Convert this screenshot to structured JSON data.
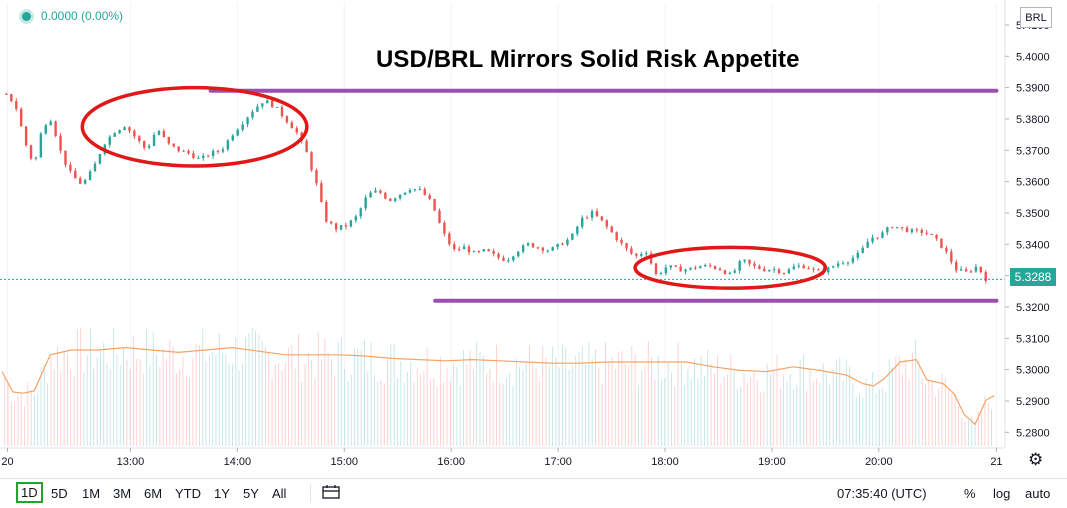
{
  "header": {
    "price_change": "0.0000 (0.00%)",
    "symbol": "BRL",
    "title": "USD/BRL Mirrors Solid Risk Appetite"
  },
  "colors": {
    "up": "#26a69a",
    "down": "#ef5350",
    "annotation_line": "#9c4fb0",
    "annotation_ellipse": "#e01818",
    "volume_ma": "#f5a365",
    "active_range": "#1fa52e"
  },
  "chart_data": {
    "type": "candlestick",
    "title": "USD/BRL Mirrors Solid Risk Appetite",
    "y_axis": {
      "ticks": [
        "5.4100",
        "5.4000",
        "5.3900",
        "5.3800",
        "5.3700",
        "5.3600",
        "5.3500",
        "5.3400",
        "5.3300",
        "5.3200",
        "5.3100",
        "5.3000",
        "5.2900",
        "5.2800"
      ],
      "range": [
        5.275,
        5.417
      ]
    },
    "x_axis": {
      "ticks": [
        {
          "label": "20",
          "hour": 11.85
        },
        {
          "label": "13:00",
          "hour": 13.0
        },
        {
          "label": "14:00",
          "hour": 14.0
        },
        {
          "label": "15:00",
          "hour": 15.0
        },
        {
          "label": "16:00",
          "hour": 16.0
        },
        {
          "label": "17:00",
          "hour": 17.0
        },
        {
          "label": "18:00",
          "hour": 18.0
        },
        {
          "label": "19:00",
          "hour": 19.0
        },
        {
          "label": "20:00",
          "hour": 20.0
        },
        {
          "label": "21",
          "hour": 21.1
        }
      ],
      "range": [
        11.78,
        21.18
      ]
    },
    "last_price": "5.3288",
    "last_price_value": 5.3288,
    "price_path": [
      [
        11.82,
        5.388
      ],
      [
        11.92,
        5.385
      ],
      [
        12.02,
        5.372
      ],
      [
        12.1,
        5.365
      ],
      [
        12.18,
        5.378
      ],
      [
        12.26,
        5.38
      ],
      [
        12.36,
        5.368
      ],
      [
        12.45,
        5.362
      ],
      [
        12.55,
        5.359
      ],
      [
        12.65,
        5.364
      ],
      [
        12.75,
        5.372
      ],
      [
        12.85,
        5.376
      ],
      [
        12.95,
        5.378
      ],
      [
        13.05,
        5.374
      ],
      [
        13.15,
        5.37
      ],
      [
        13.25,
        5.377
      ],
      [
        13.35,
        5.372
      ],
      [
        13.45,
        5.37
      ],
      [
        13.55,
        5.369
      ],
      [
        13.65,
        5.367
      ],
      [
        13.75,
        5.369
      ],
      [
        13.85,
        5.37
      ],
      [
        13.95,
        5.375
      ],
      [
        14.05,
        5.379
      ],
      [
        14.15,
        5.383
      ],
      [
        14.25,
        5.386
      ],
      [
        14.35,
        5.384
      ],
      [
        14.45,
        5.38
      ],
      [
        14.55,
        5.376
      ],
      [
        14.65,
        5.369
      ],
      [
        14.75,
        5.358
      ],
      [
        14.82,
        5.348
      ],
      [
        14.92,
        5.345
      ],
      [
        15.02,
        5.346
      ],
      [
        15.12,
        5.349
      ],
      [
        15.22,
        5.356
      ],
      [
        15.32,
        5.357
      ],
      [
        15.42,
        5.354
      ],
      [
        15.52,
        5.356
      ],
      [
        15.62,
        5.358
      ],
      [
        15.72,
        5.357
      ],
      [
        15.82,
        5.353
      ],
      [
        15.92,
        5.344
      ],
      [
        16.02,
        5.338
      ],
      [
        16.12,
        5.339
      ],
      [
        16.22,
        5.337
      ],
      [
        16.32,
        5.338
      ],
      [
        16.42,
        5.336
      ],
      [
        16.52,
        5.335
      ],
      [
        16.62,
        5.338
      ],
      [
        16.72,
        5.34
      ],
      [
        16.82,
        5.339
      ],
      [
        16.92,
        5.338
      ],
      [
        17.02,
        5.34
      ],
      [
        17.12,
        5.342
      ],
      [
        17.22,
        5.348
      ],
      [
        17.32,
        5.35
      ],
      [
        17.42,
        5.347
      ],
      [
        17.52,
        5.343
      ],
      [
        17.62,
        5.339
      ],
      [
        17.72,
        5.336
      ],
      [
        17.82,
        5.338
      ],
      [
        17.92,
        5.33
      ],
      [
        18.02,
        5.333
      ],
      [
        18.12,
        5.332
      ],
      [
        18.22,
        5.332
      ],
      [
        18.32,
        5.333
      ],
      [
        18.42,
        5.333
      ],
      [
        18.52,
        5.332
      ],
      [
        18.62,
        5.33
      ],
      [
        18.72,
        5.335
      ],
      [
        18.82,
        5.333
      ],
      [
        18.92,
        5.332
      ],
      [
        19.02,
        5.332
      ],
      [
        19.12,
        5.331
      ],
      [
        19.22,
        5.333
      ],
      [
        19.32,
        5.333
      ],
      [
        19.42,
        5.331
      ],
      [
        19.52,
        5.332
      ],
      [
        19.62,
        5.334
      ],
      [
        19.72,
        5.335
      ],
      [
        19.82,
        5.337
      ],
      [
        19.92,
        5.342
      ],
      [
        20.02,
        5.343
      ],
      [
        20.12,
        5.346
      ],
      [
        20.22,
        5.345
      ],
      [
        20.32,
        5.344
      ],
      [
        20.42,
        5.344
      ],
      [
        20.52,
        5.342
      ],
      [
        20.62,
        5.338
      ],
      [
        20.72,
        5.332
      ],
      [
        20.82,
        5.331
      ],
      [
        20.92,
        5.333
      ],
      [
        21.0,
        5.329
      ]
    ],
    "volume_ma": [
      [
        11.8,
        0.62
      ],
      [
        11.9,
        0.45
      ],
      [
        12.0,
        0.44
      ],
      [
        12.1,
        0.46
      ],
      [
        12.25,
        0.76
      ],
      [
        12.45,
        0.8
      ],
      [
        12.7,
        0.8
      ],
      [
        12.95,
        0.82
      ],
      [
        13.2,
        0.8
      ],
      [
        13.45,
        0.78
      ],
      [
        13.7,
        0.8
      ],
      [
        13.95,
        0.82
      ],
      [
        14.2,
        0.79
      ],
      [
        14.45,
        0.76
      ],
      [
        14.7,
        0.76
      ],
      [
        14.95,
        0.76
      ],
      [
        15.2,
        0.75
      ],
      [
        15.45,
        0.73
      ],
      [
        15.7,
        0.72
      ],
      [
        15.95,
        0.71
      ],
      [
        16.2,
        0.72
      ],
      [
        16.45,
        0.71
      ],
      [
        16.7,
        0.7
      ],
      [
        16.95,
        0.69
      ],
      [
        17.2,
        0.69
      ],
      [
        17.45,
        0.7
      ],
      [
        17.7,
        0.7
      ],
      [
        17.95,
        0.7
      ],
      [
        18.2,
        0.7
      ],
      [
        18.45,
        0.66
      ],
      [
        18.7,
        0.63
      ],
      [
        18.95,
        0.62
      ],
      [
        19.2,
        0.66
      ],
      [
        19.45,
        0.63
      ],
      [
        19.7,
        0.59
      ],
      [
        19.85,
        0.52
      ],
      [
        19.95,
        0.5
      ],
      [
        20.05,
        0.56
      ],
      [
        20.2,
        0.7
      ],
      [
        20.35,
        0.72
      ],
      [
        20.45,
        0.55
      ],
      [
        20.6,
        0.52
      ],
      [
        20.7,
        0.44
      ],
      [
        20.8,
        0.26
      ],
      [
        20.9,
        0.18
      ],
      [
        21.0,
        0.38
      ],
      [
        21.08,
        0.42
      ]
    ],
    "annotations": {
      "resistance": {
        "price": 5.389,
        "from_hour": 13.75,
        "to_hour": 21.1
      },
      "support": {
        "price": 5.322,
        "from_hour": 15.85,
        "to_hour": 21.1
      },
      "ellipses": [
        {
          "from_hour": 12.55,
          "to_hour": 14.65,
          "top_price": 5.39,
          "bottom_price": 5.365
        },
        {
          "from_hour": 17.72,
          "to_hour": 19.5,
          "top_price": 5.339,
          "bottom_price": 5.326
        }
      ]
    }
  },
  "toolbar": {
    "ranges": [
      "1D",
      "5D",
      "1M",
      "3M",
      "6M",
      "YTD",
      "1Y",
      "5Y",
      "All"
    ],
    "active_range": "1D",
    "time": "07:35:40 (UTC)",
    "percent": "%",
    "log": "log",
    "auto": "auto"
  }
}
